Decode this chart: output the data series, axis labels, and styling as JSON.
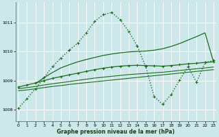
{
  "title": "Graphe pression niveau de la mer (hPa)",
  "bg_color": "#cce8ea",
  "grid_color": "#ffffff",
  "line_color": "#1a6b1a",
  "xlim": [
    -0.3,
    23.3
  ],
  "ylim": [
    1007.6,
    1011.7
  ],
  "yticks": [
    1008,
    1009,
    1010,
    1011
  ],
  "xticks": [
    0,
    1,
    2,
    3,
    4,
    5,
    6,
    7,
    8,
    9,
    10,
    11,
    12,
    13,
    14,
    15,
    16,
    17,
    18,
    19,
    20,
    21,
    22,
    23
  ],
  "series": [
    {
      "x": [
        0,
        1,
        2,
        3,
        4,
        5,
        6,
        7,
        8,
        9,
        10,
        11,
        12,
        13,
        14,
        15,
        16,
        17,
        18,
        19,
        20,
        21,
        22,
        23
      ],
      "y": [
        1008.65,
        1008.68,
        1008.72,
        1008.76,
        1008.8,
        1008.83,
        1008.87,
        1008.9,
        1008.93,
        1008.96,
        1008.99,
        1009.02,
        1009.05,
        1009.08,
        1009.11,
        1009.14,
        1009.17,
        1009.2,
        1009.23,
        1009.26,
        1009.29,
        1009.32,
        1009.35,
        1009.38
      ],
      "style": "solid",
      "marker": null,
      "linewidth": 0.8
    },
    {
      "x": [
        0,
        1,
        2,
        3,
        4,
        5,
        6,
        7,
        8,
        9,
        10,
        11,
        12,
        13,
        14,
        15,
        16,
        17,
        18,
        19,
        20,
        21,
        22,
        23
      ],
      "y": [
        1008.72,
        1008.76,
        1008.8,
        1008.85,
        1008.89,
        1008.93,
        1008.97,
        1009.01,
        1009.05,
        1009.09,
        1009.12,
        1009.15,
        1009.18,
        1009.21,
        1009.23,
        1009.25,
        1009.27,
        1009.29,
        1009.32,
        1009.35,
        1009.38,
        1009.41,
        1009.44,
        1009.47
      ],
      "style": "solid",
      "marker": null,
      "linewidth": 0.8
    },
    {
      "x": [
        0,
        1,
        2,
        3,
        4,
        5,
        6,
        7,
        8,
        9,
        10,
        11,
        12,
        13,
        14,
        15,
        16,
        17,
        18,
        19,
        20,
        21,
        22,
        23
      ],
      "y": [
        1008.78,
        1008.85,
        1008.92,
        1009.0,
        1009.08,
        1009.14,
        1009.2,
        1009.26,
        1009.32,
        1009.38,
        1009.43,
        1009.47,
        1009.5,
        1009.52,
        1009.53,
        1009.52,
        1009.51,
        1009.5,
        1009.52,
        1009.55,
        1009.58,
        1009.6,
        1009.63,
        1009.65
      ],
      "style": "solid",
      "marker": "+",
      "linewidth": 0.9
    },
    {
      "x": [
        2,
        3,
        4,
        5,
        6,
        7,
        8,
        9,
        10,
        11,
        12,
        13,
        14,
        15,
        16,
        17,
        18,
        19,
        20,
        21,
        22,
        23
      ],
      "y": [
        1008.9,
        1009.1,
        1009.28,
        1009.44,
        1009.55,
        1009.65,
        1009.73,
        1009.8,
        1009.87,
        1009.92,
        1009.96,
        1009.99,
        1010.01,
        1010.02,
        1010.05,
        1010.1,
        1010.18,
        1010.28,
        1010.4,
        1010.52,
        1010.65,
        1009.65
      ],
      "style": "solid",
      "marker": null,
      "linewidth": 0.9
    },
    {
      "x": [
        0,
        1,
        2,
        3,
        4,
        5,
        6,
        7,
        8,
        9,
        10,
        11,
        12,
        13,
        14,
        15,
        16,
        17,
        18,
        19,
        20,
        21,
        22,
        23
      ],
      "y": [
        1008.05,
        1008.38,
        1008.72,
        1009.1,
        1009.48,
        1009.78,
        1010.05,
        1010.3,
        1010.65,
        1011.05,
        1011.28,
        1011.35,
        1011.1,
        1010.7,
        1010.2,
        1009.48,
        1008.45,
        1008.18,
        1008.52,
        1009.02,
        1009.48,
        1008.95,
        1009.62,
        1009.7
      ],
      "style": "dotted",
      "marker": "+",
      "linewidth": 1.0
    }
  ]
}
